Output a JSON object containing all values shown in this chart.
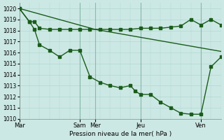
{
  "bg_color": "#cce8e4",
  "grid_color": "#b0d8d0",
  "line_color": "#1a5c1a",
  "marker_size": 2.5,
  "linewidth": 1.0,
  "title": "Pression niveau de la mer( hPa )",
  "ylim": [
    1010,
    1020.5
  ],
  "yticks": [
    1010,
    1011,
    1012,
    1013,
    1014,
    1015,
    1016,
    1017,
    1018,
    1019,
    1020
  ],
  "xtick_labels": [
    "Mar",
    "Sam",
    "Mer",
    "Jeu",
    "Ven"
  ],
  "xtick_pos": [
    0,
    24,
    30,
    48,
    72
  ],
  "vline_pos": [
    0,
    24,
    30,
    48,
    72
  ],
  "xmax": 80,
  "series1_x": [
    0,
    4,
    6,
    8,
    12,
    16,
    20,
    24,
    28,
    32,
    36,
    40,
    44,
    48,
    52,
    56,
    60,
    64,
    68,
    72,
    76,
    80
  ],
  "series1_y": [
    1020,
    1018.8,
    1018.8,
    1018.2,
    1018.1,
    1018.1,
    1018.1,
    1018.1,
    1018.1,
    1018.1,
    1018.1,
    1018.1,
    1018.1,
    1018.2,
    1018.2,
    1018.2,
    1018.3,
    1018.4,
    1019.0,
    1018.5,
    1019.0,
    1018.5
  ],
  "series2_x": [
    0,
    4,
    6,
    8,
    12,
    16,
    20,
    24,
    28,
    32,
    36,
    40,
    44,
    46,
    48,
    52,
    56,
    60,
    64,
    68,
    72,
    76,
    80
  ],
  "series2_y": [
    1020,
    1018.8,
    1018.1,
    1016.7,
    1016.2,
    1015.6,
    1016.2,
    1016.2,
    1013.8,
    1013.3,
    1013.0,
    1012.8,
    1013.0,
    1012.5,
    1012.2,
    1012.2,
    1011.5,
    1011.0,
    1010.5,
    1010.4,
    1010.4,
    1014.7,
    1015.6
  ],
  "series3_x": [
    0,
    30,
    80
  ],
  "series3_y": [
    1020,
    1018.1,
    1016.1
  ]
}
